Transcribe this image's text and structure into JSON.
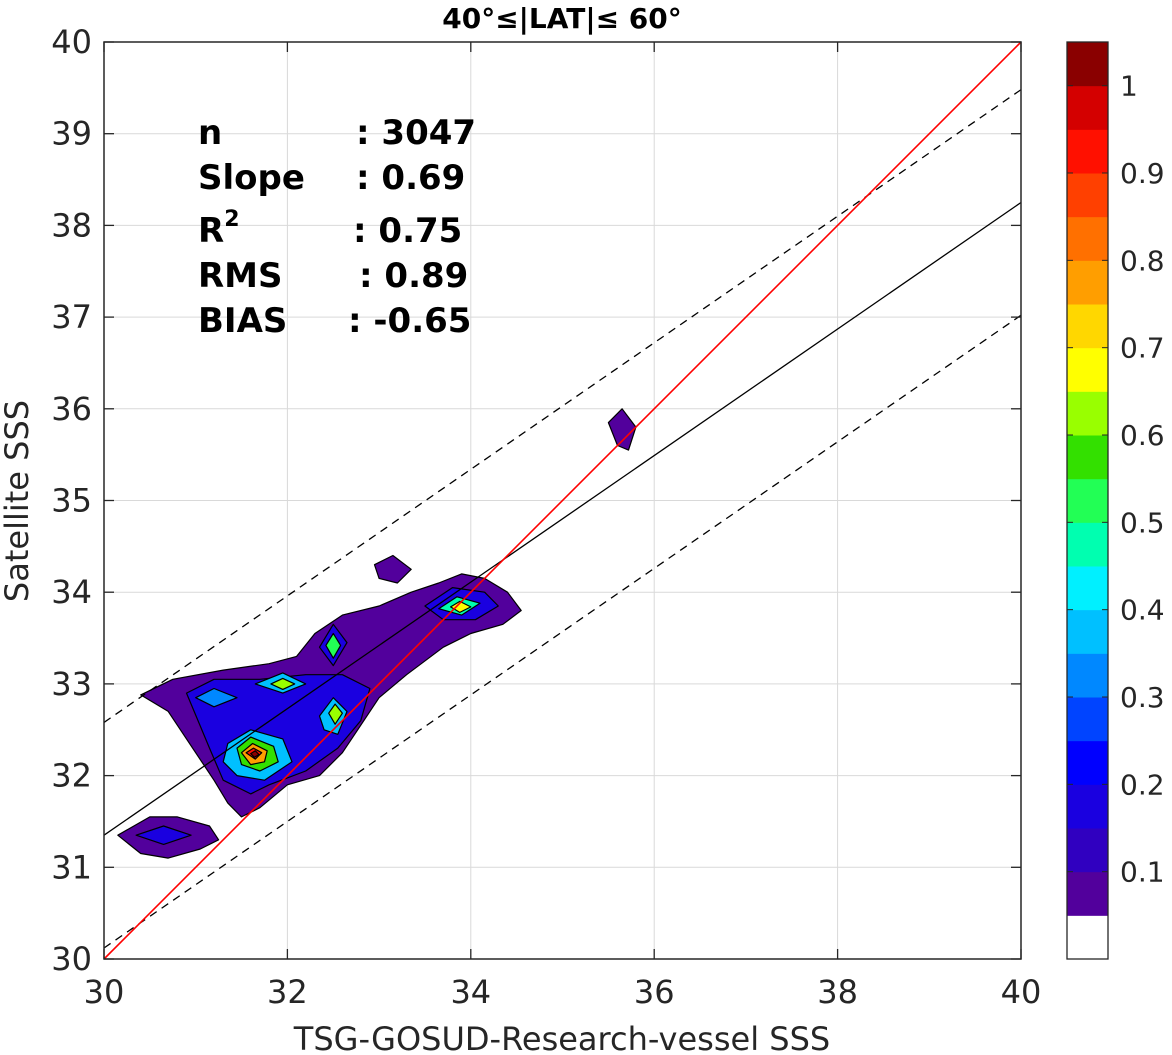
{
  "chart_data": {
    "type": "contour",
    "title": "40°≤|LAT|≤ 60°",
    "xlabel": "TSG-GOSUD-Research-vessel SSS",
    "ylabel": "Satellite SSS",
    "xlim": [
      30,
      40
    ],
    "ylim": [
      30,
      40
    ],
    "xticks": [
      "30",
      "32",
      "34",
      "36",
      "38",
      "40"
    ],
    "yticks": [
      "30",
      "31",
      "32",
      "33",
      "34",
      "35",
      "36",
      "37",
      "38",
      "39",
      "40"
    ],
    "grid": true,
    "stats": {
      "n_label": "n",
      "n_value": ": 3047",
      "slope_label": "Slope",
      "slope_value": ": 0.69",
      "r2_label": "R",
      "r2_sup": "2",
      "r2_value": ": 0.75",
      "rms_label": "RMS",
      "rms_value": ": 0.89",
      "bias_label": "BIAS",
      "bias_value": ": -0.65"
    },
    "lines": {
      "one_to_one": {
        "color": "#ff0000",
        "x": [
          30,
          40
        ],
        "y": [
          30,
          40
        ]
      },
      "regression": {
        "color": "#000000",
        "style": "solid",
        "x": [
          30,
          40
        ],
        "y": [
          31.35,
          38.25
        ]
      },
      "upper_band": {
        "color": "#000000",
        "style": "dashed",
        "x": [
          30,
          40
        ],
        "y": [
          32.58,
          39.48
        ]
      },
      "lower_band": {
        "color": "#000000",
        "style": "dashed",
        "x": [
          30,
          40
        ],
        "y": [
          30.12,
          37.02
        ]
      }
    },
    "colorbar": {
      "ticks": [
        "0.1",
        "0.2",
        "0.3",
        "0.4",
        "0.5",
        "0.6",
        "0.7",
        "0.8",
        "0.9",
        "1"
      ],
      "levels": [
        "#ffffff",
        "#52009c",
        "#3000c0",
        "#1a00e0",
        "#0000ff",
        "#0044ff",
        "#0088ff",
        "#00c0ff",
        "#00f0ff",
        "#00ffb0",
        "#22ff55",
        "#33e000",
        "#99ff00",
        "#ffff00",
        "#ffd700",
        "#ff9e00",
        "#ff7000",
        "#ff4000",
        "#ff1000",
        "#d40000",
        "#8a0000"
      ]
    },
    "contour_blobs": [
      {
        "level": 1,
        "points": [
          [
            30.4,
            32.88
          ],
          [
            30.75,
            33.05
          ],
          [
            31.3,
            33.15
          ],
          [
            31.8,
            33.22
          ],
          [
            32.1,
            33.3
          ],
          [
            32.3,
            33.55
          ],
          [
            32.6,
            33.75
          ],
          [
            33.0,
            33.85
          ],
          [
            33.35,
            34.0
          ],
          [
            33.65,
            34.1
          ],
          [
            33.9,
            34.2
          ],
          [
            34.15,
            34.15
          ],
          [
            34.4,
            34.0
          ],
          [
            34.55,
            33.8
          ],
          [
            34.35,
            33.65
          ],
          [
            34.0,
            33.55
          ],
          [
            33.7,
            33.4
          ],
          [
            33.3,
            33.1
          ],
          [
            33.0,
            32.85
          ],
          [
            32.8,
            32.55
          ],
          [
            32.6,
            32.25
          ],
          [
            32.35,
            32.0
          ],
          [
            32.0,
            31.9
          ],
          [
            31.7,
            31.65
          ],
          [
            31.5,
            31.55
          ],
          [
            31.35,
            31.7
          ],
          [
            31.2,
            31.95
          ],
          [
            30.9,
            32.4
          ],
          [
            30.7,
            32.7
          ]
        ]
      },
      {
        "level": 1,
        "points": [
          [
            30.15,
            31.35
          ],
          [
            30.5,
            31.55
          ],
          [
            30.8,
            31.55
          ],
          [
            31.15,
            31.45
          ],
          [
            31.25,
            31.3
          ],
          [
            31.05,
            31.2
          ],
          [
            30.7,
            31.1
          ],
          [
            30.4,
            31.15
          ]
        ]
      },
      {
        "level": 1,
        "points": [
          [
            35.5,
            35.85
          ],
          [
            35.65,
            36.0
          ],
          [
            35.8,
            35.8
          ],
          [
            35.72,
            35.55
          ],
          [
            35.6,
            35.6
          ]
        ]
      },
      {
        "level": 1,
        "points": [
          [
            32.95,
            34.3
          ],
          [
            33.15,
            34.4
          ],
          [
            33.35,
            34.25
          ],
          [
            33.2,
            34.1
          ],
          [
            33.0,
            34.15
          ]
        ]
      },
      {
        "level": 3,
        "points": [
          [
            30.9,
            32.9
          ],
          [
            31.2,
            33.05
          ],
          [
            31.7,
            33.05
          ],
          [
            32.2,
            33.1
          ],
          [
            32.6,
            33.1
          ],
          [
            32.9,
            32.95
          ],
          [
            32.8,
            32.6
          ],
          [
            32.55,
            32.3
          ],
          [
            32.2,
            32.05
          ],
          [
            31.8,
            31.9
          ],
          [
            31.6,
            31.8
          ],
          [
            31.3,
            31.95
          ],
          [
            31.15,
            32.3
          ]
        ]
      },
      {
        "level": 3,
        "points": [
          [
            33.5,
            33.85
          ],
          [
            33.8,
            34.05
          ],
          [
            34.15,
            34.0
          ],
          [
            34.3,
            33.85
          ],
          [
            34.05,
            33.7
          ],
          [
            33.7,
            33.7
          ]
        ]
      },
      {
        "level": 3,
        "points": [
          [
            32.35,
            33.4
          ],
          [
            32.5,
            33.65
          ],
          [
            32.65,
            33.45
          ],
          [
            32.5,
            33.2
          ]
        ]
      },
      {
        "level": 3,
        "points": [
          [
            30.35,
            31.35
          ],
          [
            30.65,
            31.45
          ],
          [
            30.95,
            31.35
          ],
          [
            30.65,
            31.25
          ]
        ]
      },
      {
        "level": 6,
        "points": [
          [
            31.0,
            32.85
          ],
          [
            31.2,
            32.95
          ],
          [
            31.45,
            32.85
          ],
          [
            31.2,
            32.75
          ]
        ]
      },
      {
        "level": 7,
        "points": [
          [
            31.35,
            32.35
          ],
          [
            31.6,
            32.5
          ],
          [
            31.95,
            32.4
          ],
          [
            32.05,
            32.15
          ],
          [
            31.75,
            31.95
          ],
          [
            31.45,
            32.0
          ],
          [
            31.3,
            32.15
          ]
        ]
      },
      {
        "level": 7,
        "points": [
          [
            31.65,
            33.0
          ],
          [
            31.95,
            33.12
          ],
          [
            32.2,
            33.0
          ],
          [
            31.95,
            32.9
          ]
        ]
      },
      {
        "level": 7,
        "points": [
          [
            32.35,
            32.65
          ],
          [
            32.5,
            32.85
          ],
          [
            32.65,
            32.7
          ],
          [
            32.55,
            32.45
          ],
          [
            32.4,
            32.5
          ]
        ]
      },
      {
        "level": 9,
        "points": [
          [
            33.65,
            33.82
          ],
          [
            33.85,
            33.95
          ],
          [
            34.1,
            33.88
          ],
          [
            33.9,
            33.75
          ]
        ]
      },
      {
        "level": 10,
        "points": [
          [
            32.42,
            33.42
          ],
          [
            32.5,
            33.55
          ],
          [
            32.58,
            33.42
          ],
          [
            32.5,
            33.28
          ]
        ]
      },
      {
        "level": 11,
        "points": [
          [
            31.45,
            32.3
          ],
          [
            31.6,
            32.42
          ],
          [
            31.85,
            32.32
          ],
          [
            31.9,
            32.15
          ],
          [
            31.7,
            32.05
          ],
          [
            31.5,
            32.12
          ]
        ]
      },
      {
        "level": 12,
        "points": [
          [
            31.82,
            33.0
          ],
          [
            31.95,
            33.06
          ],
          [
            32.08,
            33.0
          ],
          [
            31.95,
            32.94
          ]
        ]
      },
      {
        "level": 12,
        "points": [
          [
            32.45,
            32.68
          ],
          [
            32.52,
            32.78
          ],
          [
            32.6,
            32.68
          ],
          [
            32.52,
            32.56
          ]
        ]
      },
      {
        "level": 13,
        "points": [
          [
            33.78,
            33.84
          ],
          [
            33.88,
            33.9
          ],
          [
            34.0,
            33.84
          ],
          [
            33.88,
            33.78
          ]
        ]
      },
      {
        "level": 15,
        "points": [
          [
            31.5,
            32.25
          ],
          [
            31.62,
            32.35
          ],
          [
            31.78,
            32.27
          ],
          [
            31.75,
            32.15
          ],
          [
            31.6,
            32.12
          ]
        ]
      },
      {
        "level": 18,
        "points": [
          [
            31.55,
            32.25
          ],
          [
            31.63,
            32.3
          ],
          [
            31.72,
            32.25
          ],
          [
            31.65,
            32.18
          ]
        ]
      },
      {
        "level": 20,
        "points": [
          [
            31.6,
            32.24
          ],
          [
            31.65,
            32.27
          ],
          [
            31.69,
            32.23
          ],
          [
            31.64,
            32.2
          ]
        ]
      }
    ]
  }
}
